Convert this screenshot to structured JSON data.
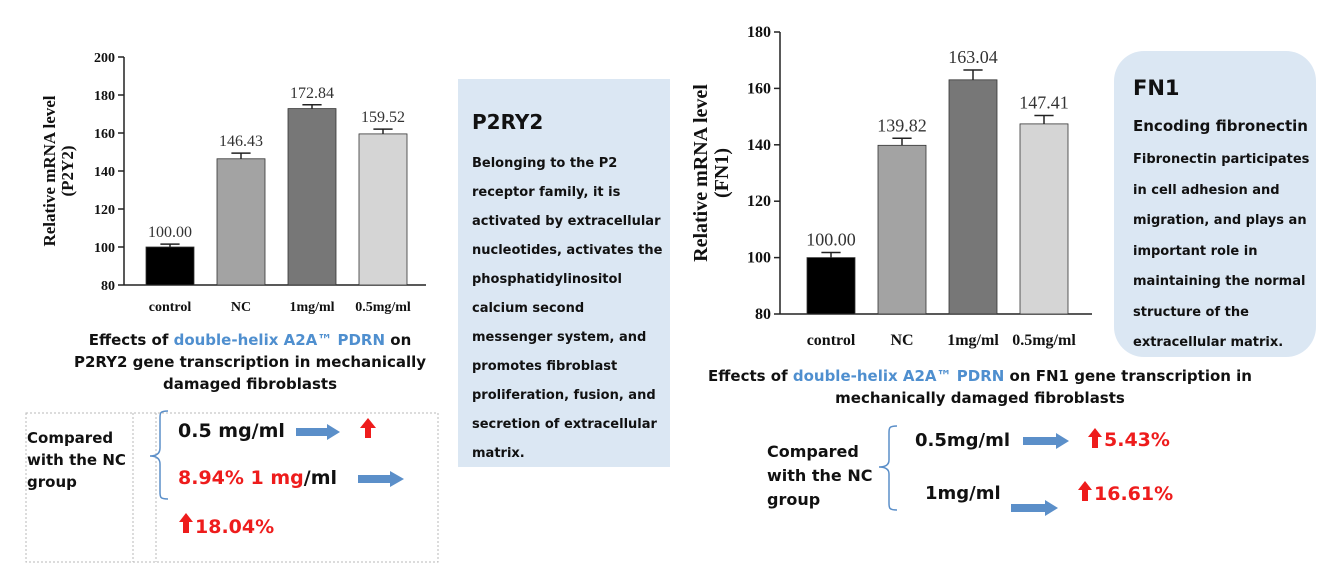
{
  "chart_data": [
    {
      "type": "bar",
      "categories": [
        "control",
        "NC",
        "1mg/ml",
        "0.5mg/ml"
      ],
      "values": [
        100.0,
        146.43,
        172.84,
        159.52
      ],
      "value_labels": [
        "100.00",
        "146.43",
        "172.84",
        "159.52"
      ],
      "errors": [
        1.5,
        3,
        2,
        2.5
      ],
      "ylabel": "Relative mRNA level\n(P2Y2)",
      "ylabel_lines": [
        "Relative mRNA level",
        "(P2Y2)"
      ],
      "ylim": [
        80,
        200
      ],
      "yticks": [
        80,
        100,
        120,
        140,
        160,
        180,
        200
      ],
      "colors": [
        "#000000",
        "#a3a3a3",
        "#777777",
        "#d5d5d5"
      ],
      "grid": false
    },
    {
      "type": "bar",
      "categories": [
        "control",
        "NC",
        "1mg/ml",
        "0.5mg/ml"
      ],
      "values": [
        100.0,
        139.82,
        163.04,
        147.41
      ],
      "value_labels": [
        "100.00",
        "139.82",
        "163.04",
        "147.41"
      ],
      "errors": [
        1.8,
        2.5,
        3.5,
        3
      ],
      "ylabel": "Relative mRNA level\n(FN1)",
      "ylabel_lines": [
        "Relative mRNA level",
        "(FN1)"
      ],
      "ylim": [
        80,
        180
      ],
      "yticks": [
        80,
        100,
        120,
        140,
        160,
        180
      ],
      "colors": [
        "#000000",
        "#a3a3a3",
        "#777777",
        "#d5d5d5"
      ],
      "grid": false
    }
  ],
  "left": {
    "caption_pre": "Effects of ",
    "caption_hl": "double-helix A2A™ PDRN",
    "caption_post": " on  P2RY2 gene transcription in mechanically damaged fibroblasts",
    "compare_label": "Compared with the NC group",
    "line1": "0.5 mg/ml",
    "line2_red": "8.94% 1 mg",
    "line2_black": "/ml",
    "line3": "18.04%"
  },
  "p2ry2_box": {
    "title": "P2RY2",
    "body": "Belonging to the P2 receptor family, it is activated by extracellular nucleotides, activates the phosphatidylinositol calcium second messenger system, and promotes fibroblast proliferation, fusion, and secretion of extracellular matrix."
  },
  "fn1_box": {
    "title": "FN1",
    "subtitle": "Encoding fibronectin",
    "body": "Fibronectin participates in cell adhesion and migration, and plays an important role in maintaining the normal structure of the extracellular matrix."
  },
  "right": {
    "caption_pre": "Effects of ",
    "caption_hl": "double-helix A2A™ PDRN",
    "caption_post": " on FN1 gene transcription in mechanically damaged fibroblasts",
    "compare_label": "Compared with the NC group",
    "dose1": "0.5mg/ml",
    "val1": "5.43%",
    "dose2": "1mg/ml",
    "val2": "16.61%"
  },
  "colors": {
    "arrow_blue": "#5b8fc9",
    "arrow_red": "#ee1c1c",
    "highlight": "#4f8fcf",
    "box_bg": "#dbe7f3"
  }
}
